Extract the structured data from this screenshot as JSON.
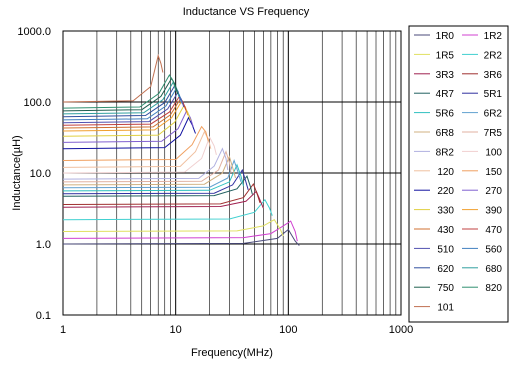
{
  "chart_data": {
    "type": "line",
    "title": "Inductance VS Frequency",
    "xlabel": "Frequency(MHz)",
    "ylabel": "Inductance(µH)",
    "x_scale": "log",
    "y_scale": "log",
    "xlim": [
      1,
      1000
    ],
    "ylim": [
      0.1,
      1000
    ],
    "x_ticks": [
      "1",
      "10",
      "100",
      "1000"
    ],
    "y_ticks": [
      "0.1",
      "1.0",
      "10.0",
      "100.0",
      "1000.0"
    ],
    "grid": true,
    "legend_position": "right",
    "series": [
      {
        "name": "1R0",
        "color": "#4a4a7a",
        "values": [
          [
            1,
            1.0
          ],
          [
            40,
            1.02
          ],
          [
            80,
            1.2
          ],
          [
            100,
            1.6
          ],
          [
            115,
            1.1
          ],
          [
            125,
            0.95
          ]
        ]
      },
      {
        "name": "1R2",
        "color": "#d040d0",
        "values": [
          [
            1,
            1.2
          ],
          [
            40,
            1.23
          ],
          [
            70,
            1.4
          ],
          [
            90,
            1.8
          ],
          [
            105,
            2.1
          ],
          [
            115,
            1.5
          ],
          [
            120,
            1.1
          ]
        ]
      },
      {
        "name": "1R5",
        "color": "#e0e060",
        "values": [
          [
            1,
            1.5
          ],
          [
            35,
            1.53
          ],
          [
            60,
            1.8
          ],
          [
            75,
            2.2
          ],
          [
            85,
            1.6
          ],
          [
            90,
            1.3
          ]
        ]
      },
      {
        "name": "2R2",
        "color": "#40d0d0",
        "values": [
          [
            1,
            2.2
          ],
          [
            30,
            2.25
          ],
          [
            50,
            2.8
          ],
          [
            62,
            4.2
          ],
          [
            68,
            3.2
          ],
          [
            72,
            2.5
          ]
        ]
      },
      {
        "name": "3R3",
        "color": "#a02050",
        "values": [
          [
            1,
            3.3
          ],
          [
            25,
            3.37
          ],
          [
            42,
            4.0
          ],
          [
            52,
            5.5
          ],
          [
            57,
            3.9
          ],
          [
            60,
            3.2
          ]
        ]
      },
      {
        "name": "3R6",
        "color": "#a03030",
        "values": [
          [
            1,
            3.6
          ],
          [
            25,
            3.67
          ],
          [
            40,
            4.5
          ],
          [
            49,
            7.0
          ],
          [
            53,
            5.0
          ],
          [
            56,
            3.8
          ]
        ]
      },
      {
        "name": "4R7",
        "color": "#206060",
        "values": [
          [
            1,
            4.7
          ],
          [
            22,
            4.8
          ],
          [
            35,
            6.0
          ],
          [
            43,
            9.0
          ],
          [
            46,
            6.5
          ],
          [
            48,
            5.0
          ]
        ]
      },
      {
        "name": "5R1",
        "color": "#3030a0",
        "values": [
          [
            1,
            5.1
          ],
          [
            22,
            5.2
          ],
          [
            32,
            6.8
          ],
          [
            39,
            11.0
          ],
          [
            42,
            7.5
          ],
          [
            44,
            5.8
          ]
        ]
      },
      {
        "name": "5R6",
        "color": "#30c0c0",
        "values": [
          [
            1,
            5.6
          ],
          [
            20,
            5.7
          ],
          [
            30,
            7.5
          ],
          [
            35,
            13.0
          ],
          [
            38,
            9.0
          ],
          [
            40,
            6.5
          ]
        ]
      },
      {
        "name": "6R2",
        "color": "#60a0d0",
        "values": [
          [
            1,
            6.2
          ],
          [
            20,
            6.3
          ],
          [
            29,
            8.5
          ],
          [
            33,
            15.0
          ],
          [
            36,
            10.0
          ],
          [
            38,
            7.5
          ]
        ]
      },
      {
        "name": "6R8",
        "color": "#d0b080",
        "values": [
          [
            1,
            6.8
          ],
          [
            18,
            6.95
          ],
          [
            26,
            10.0
          ],
          [
            30,
            17.0
          ],
          [
            32,
            12.0
          ],
          [
            34,
            8.5
          ]
        ]
      },
      {
        "name": "7R5",
        "color": "#e0b0a0",
        "values": [
          [
            1,
            7.5
          ],
          [
            17,
            7.65
          ],
          [
            24,
            11.0
          ],
          [
            28,
            20.0
          ],
          [
            30,
            14.0
          ],
          [
            31,
            10.0
          ]
        ]
      },
      {
        "name": "8R2",
        "color": "#b0b0e0",
        "values": [
          [
            1,
            8.2
          ],
          [
            16,
            8.4
          ],
          [
            22,
            12.5
          ],
          [
            26,
            22.0
          ],
          [
            28,
            16.0
          ],
          [
            29,
            11.0
          ]
        ]
      },
      {
        "name": "100",
        "color": "#f0d0d0",
        "values": [
          [
            1,
            10
          ],
          [
            12,
            10.3
          ],
          [
            17,
            16.0
          ],
          [
            20,
            32.0
          ],
          [
            22,
            24.0
          ],
          [
            23,
            18.0
          ]
        ]
      },
      {
        "name": "120",
        "color": "#f0c0a0",
        "values": [
          [
            1,
            12
          ],
          [
            11,
            12.4
          ],
          [
            15,
            20.0
          ],
          [
            18,
            38.0
          ],
          [
            19.5,
            30.0
          ],
          [
            20.5,
            22.0
          ]
        ]
      },
      {
        "name": "150",
        "color": "#f0a060",
        "values": [
          [
            1,
            15
          ],
          [
            10,
            15.5
          ],
          [
            14,
            25.0
          ],
          [
            17,
            45.0
          ],
          [
            18.5,
            38.0
          ],
          [
            19.5,
            28.0
          ]
        ]
      },
      {
        "name": "220",
        "color": "#1010a0",
        "values": [
          [
            1,
            22
          ],
          [
            8,
            22.8
          ],
          [
            11,
            34.0
          ],
          [
            13,
            60.0
          ],
          [
            14,
            48.0
          ],
          [
            15,
            36.0
          ]
        ]
      },
      {
        "name": "270",
        "color": "#8060d0",
        "values": [
          [
            1,
            27
          ],
          [
            7.5,
            28.0
          ],
          [
            10.5,
            42.0
          ],
          [
            12.5,
            75.0
          ],
          [
            13.5,
            60.0
          ],
          [
            14.3,
            45.0
          ]
        ]
      },
      {
        "name": "330",
        "color": "#e0d040",
        "values": [
          [
            1,
            33
          ],
          [
            7,
            34.2
          ],
          [
            9.8,
            52.0
          ],
          [
            11.8,
            88.0
          ],
          [
            12.8,
            72.0
          ],
          [
            13.5,
            55.0
          ]
        ]
      },
      {
        "name": "390",
        "color": "#f0a030",
        "values": [
          [
            1,
            39
          ],
          [
            6.5,
            40.5
          ],
          [
            9.2,
            60.0
          ],
          [
            11.2,
            100.0
          ],
          [
            12.2,
            85.0
          ],
          [
            12.8,
            65.0
          ]
        ]
      },
      {
        "name": "430",
        "color": "#d07030",
        "values": [
          [
            1,
            43
          ],
          [
            6.3,
            44.6
          ],
          [
            9.0,
            66.0
          ],
          [
            11.0,
            110.0
          ],
          [
            11.8,
            92.0
          ],
          [
            12.5,
            72.0
          ]
        ]
      },
      {
        "name": "470",
        "color": "#c04040",
        "values": [
          [
            1,
            47
          ],
          [
            6,
            48.8
          ],
          [
            8.8,
            72.0
          ],
          [
            10.8,
            120.0
          ],
          [
            11.6,
            100.0
          ],
          [
            12.3,
            78.0
          ]
        ]
      },
      {
        "name": "510",
        "color": "#5050b0",
        "values": [
          [
            1,
            51
          ],
          [
            5.8,
            53.0
          ],
          [
            8.5,
            80.0
          ],
          [
            10.4,
            135.0
          ],
          [
            11.2,
            110.0
          ],
          [
            11.8,
            85.0
          ]
        ]
      },
      {
        "name": "560",
        "color": "#4080c0",
        "values": [
          [
            1,
            56
          ],
          [
            5.6,
            58.0
          ],
          [
            8.2,
            88.0
          ],
          [
            10.0,
            150.0
          ],
          [
            10.8,
            125.0
          ],
          [
            11.4,
            95.0
          ]
        ]
      },
      {
        "name": "620",
        "color": "#3050a0",
        "values": [
          [
            1,
            62
          ],
          [
            5.4,
            64.5
          ],
          [
            8.0,
            98.0
          ],
          [
            9.8,
            170.0
          ],
          [
            10.5,
            140.0
          ],
          [
            11.0,
            105.0
          ]
        ]
      },
      {
        "name": "680",
        "color": "#30a0a0",
        "values": [
          [
            1,
            68
          ],
          [
            5.2,
            70.5
          ],
          [
            7.7,
            108.0
          ],
          [
            9.5,
            190.0
          ],
          [
            10.2,
            155.0
          ],
          [
            10.7,
            118.0
          ]
        ]
      },
      {
        "name": "750",
        "color": "#206050",
        "values": [
          [
            1,
            75
          ],
          [
            5,
            78.0
          ],
          [
            7.4,
            120.0
          ],
          [
            9.2,
            215.0
          ],
          [
            9.9,
            175.0
          ],
          [
            10.4,
            130.0
          ]
        ]
      },
      {
        "name": "820",
        "color": "#309070",
        "values": [
          [
            1,
            82
          ],
          [
            4.8,
            85.0
          ],
          [
            7.1,
            132.0
          ],
          [
            8.8,
            240.0
          ],
          [
            9.5,
            195.0
          ],
          [
            10.0,
            145.0
          ]
        ]
      },
      {
        "name": "101",
        "color": "#c07050",
        "values": [
          [
            1,
            100
          ],
          [
            4.2,
            104.0
          ],
          [
            6.0,
            165.0
          ],
          [
            7.0,
            450.0
          ],
          [
            7.4,
            350.0
          ],
          [
            7.7,
            260.0
          ]
        ]
      }
    ]
  }
}
